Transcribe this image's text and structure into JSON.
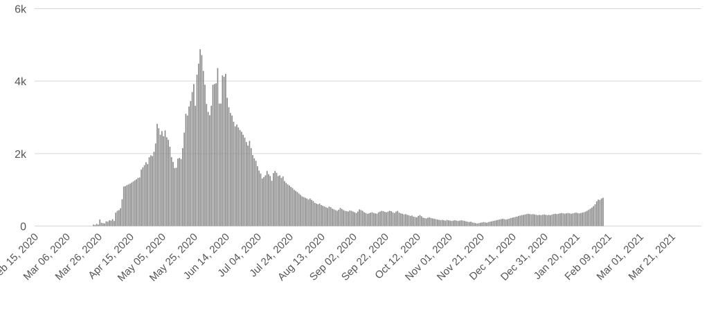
{
  "chart_data": {
    "type": "bar",
    "title": "",
    "xlabel": "",
    "ylabel": "",
    "ylim": [
      0,
      6000
    ],
    "grid": true,
    "bar_color": "#8c8c8c",
    "grid_color": "#d6d6d6",
    "y_ticks": [
      {
        "value": 0,
        "label": "0"
      },
      {
        "value": 2000,
        "label": "2k"
      },
      {
        "value": 4000,
        "label": "4k"
      },
      {
        "value": 6000,
        "label": "6k"
      }
    ],
    "x_ticks": [
      {
        "date": "2020-02-15",
        "label": "Feb 15, 2020"
      },
      {
        "date": "2020-03-06",
        "label": "Mar 06, 2020"
      },
      {
        "date": "2020-03-26",
        "label": "Mar 26, 2020"
      },
      {
        "date": "2020-04-15",
        "label": "Apr 15, 2020"
      },
      {
        "date": "2020-05-05",
        "label": "May 05, 2020"
      },
      {
        "date": "2020-05-25",
        "label": "May 25, 2020"
      },
      {
        "date": "2020-06-14",
        "label": "Jun 14, 2020"
      },
      {
        "date": "2020-07-04",
        "label": "Jul 04, 2020"
      },
      {
        "date": "2020-07-24",
        "label": "Jul 24, 2020"
      },
      {
        "date": "2020-08-13",
        "label": "Aug 13, 2020"
      },
      {
        "date": "2020-09-02",
        "label": "Sep 02, 2020"
      },
      {
        "date": "2020-09-22",
        "label": "Sep 22, 2020"
      },
      {
        "date": "2020-10-12",
        "label": "Oct 12, 2020"
      },
      {
        "date": "2020-11-01",
        "label": "Nov 01, 2020"
      },
      {
        "date": "2020-11-21",
        "label": "Nov 21, 2020"
      },
      {
        "date": "2020-12-11",
        "label": "Dec 11, 2020"
      },
      {
        "date": "2020-12-31",
        "label": "Dec 31, 2020"
      },
      {
        "date": "2021-01-20",
        "label": "Jan 20, 2021"
      },
      {
        "date": "2021-02-09",
        "label": "Feb 09, 2021"
      },
      {
        "date": "2021-03-01",
        "label": "Mar 01, 2021"
      },
      {
        "date": "2021-03-21",
        "label": "Mar 21, 2021"
      }
    ],
    "series": [
      {
        "x_start": "2020-02-16",
        "x_end": "2021-04-05",
        "interval": "daily",
        "values": [
          0,
          0,
          0,
          0,
          0,
          0,
          0,
          0,
          0,
          0,
          0,
          0,
          0,
          0,
          0,
          0,
          0,
          0,
          0,
          0,
          0,
          0,
          0,
          0,
          0,
          0,
          0,
          0,
          0,
          0,
          0,
          0,
          0,
          0,
          0,
          40,
          30,
          60,
          40,
          180,
          90,
          80,
          70,
          130,
          120,
          160,
          150,
          190,
          140,
          370,
          420,
          440,
          490,
          740,
          1090,
          1100,
          1130,
          1150,
          1170,
          1200,
          1230,
          1260,
          1290,
          1330,
          1340,
          1560,
          1620,
          1680,
          1760,
          1710,
          1900,
          1950,
          1930,
          2050,
          2280,
          2820,
          2700,
          2520,
          2620,
          2480,
          2640,
          2450,
          2380,
          2190,
          1900,
          1770,
          1600,
          1610,
          1860,
          1880,
          1850,
          2150,
          2580,
          3100,
          3050,
          3300,
          3450,
          3700,
          3920,
          3320,
          4180,
          4480,
          4880,
          4720,
          4280,
          3900,
          3370,
          3150,
          3060,
          3320,
          3900,
          3920,
          3940,
          4360,
          3380,
          3380,
          4160,
          4120,
          4200,
          3540,
          3280,
          3120,
          3050,
          2880,
          2750,
          2800,
          2720,
          2650,
          2600,
          2520,
          2440,
          2320,
          2220,
          2350,
          2150,
          1960,
          1870,
          1800,
          1650,
          1530,
          1450,
          1310,
          1350,
          1400,
          1520,
          1430,
          1380,
          1250,
          1460,
          1520,
          1470,
          1380,
          1400,
          1330,
          1370,
          1240,
          1190,
          1150,
          1120,
          1080,
          1050,
          1000,
          970,
          940,
          900,
          860,
          820,
          800,
          780,
          760,
          730,
          760,
          720,
          690,
          640,
          620,
          600,
          620,
          580,
          560,
          540,
          520,
          500,
          540,
          520,
          480,
          460,
          440,
          420,
          450,
          500,
          470,
          440,
          420,
          410,
          400,
          430,
          420,
          400,
          380,
          360,
          400,
          460,
          440,
          420,
          380,
          360,
          340,
          350,
          370,
          380,
          360,
          350,
          340,
          380,
          400,
          420,
          410,
          390,
          380,
          400,
          420,
          410,
          380,
          360,
          400,
          420,
          370,
          350,
          340,
          320,
          330,
          310,
          300,
          280,
          290,
          260,
          250,
          240,
          280,
          300,
          270,
          230,
          220,
          210,
          230,
          240,
          220,
          210,
          200,
          190,
          180,
          170,
          160,
          170,
          160,
          150,
          170,
          160,
          150,
          140,
          150,
          160,
          150,
          140,
          150,
          160,
          150,
          140,
          130,
          120,
          110,
          120,
          100,
          90,
          80,
          70,
          80,
          90,
          100,
          110,
          100,
          90,
          110,
          120,
          130,
          140,
          150,
          160,
          170,
          180,
          190,
          200,
          190,
          180,
          190,
          200,
          220,
          230,
          240,
          250,
          260,
          280,
          290,
          300,
          310,
          320,
          330,
          340,
          330,
          320,
          330,
          320,
          310,
          300,
          310,
          300,
          310,
          320,
          310,
          300,
          310,
          300,
          320,
          330,
          340,
          330,
          340,
          350,
          360,
          350,
          340,
          350,
          360,
          350,
          340,
          350,
          360,
          370,
          360,
          350,
          360,
          370,
          380,
          400,
          420,
          450,
          480,
          510,
          550,
          600,
          680,
          730,
          720,
          760,
          780
        ]
      }
    ]
  }
}
